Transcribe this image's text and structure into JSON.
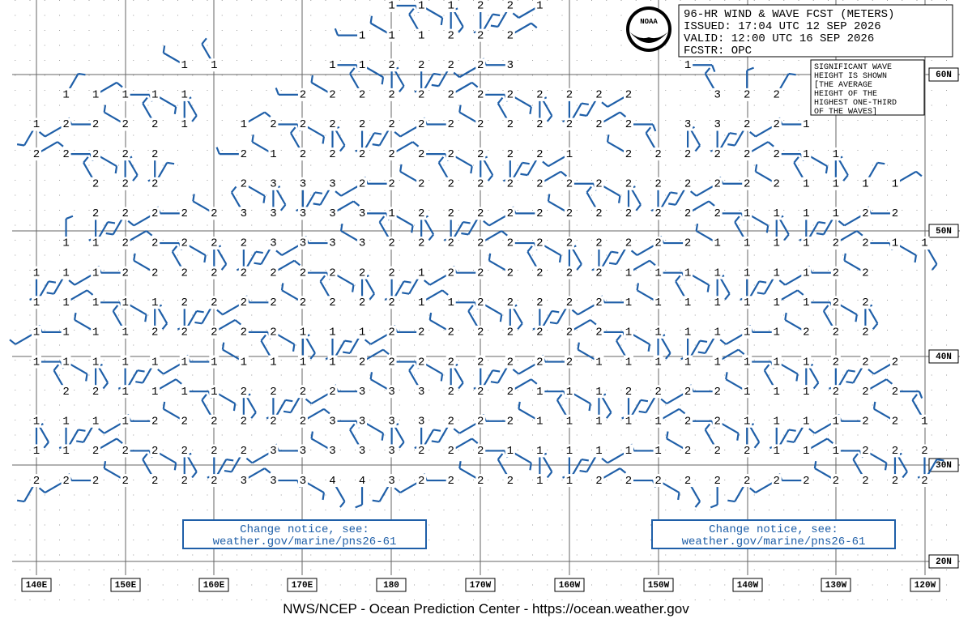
{
  "header": {
    "lines": [
      "96-HR WIND & WAVE FCST (METERS)",
      "ISSUED: 17:04 UTC 12 SEP 2026",
      "VALID:  12:00 UTC 16 SEP 2026",
      "FCSTR:  OPC"
    ],
    "logo_text": "NOAA"
  },
  "note": {
    "lines": [
      "SIGNIFICANT WAVE",
      "HEIGHT IS SHOWN",
      "[THE AVERAGE",
      "HEIGHT OF THE",
      "HIGHEST ONE-THIRD",
      "OF THE WAVES]"
    ]
  },
  "notices": [
    {
      "lines": [
        "Change notice, see:",
        "weather.gov/marine/pns26-61"
      ]
    },
    {
      "lines": [
        "Change notice, see:",
        "weather.gov/marine/pns26-61"
      ]
    }
  ],
  "longitude_labels": [
    "140E",
    "150E",
    "160E",
    "170E",
    "180",
    "170W",
    "160W",
    "150W",
    "140W",
    "130W",
    "120W"
  ],
  "latitude_labels": [
    "60N",
    "50N",
    "40N",
    "30N",
    "20N"
  ],
  "wave_grid": {
    "rows": [
      [
        null,
        null,
        null,
        null,
        null,
        null,
        null,
        null,
        null,
        null,
        null,
        null,
        1,
        1,
        1,
        2,
        2,
        1,
        null,
        null,
        null,
        null,
        null,
        null,
        null,
        null,
        null,
        null,
        null,
        null,
        null
      ],
      [
        null,
        null,
        null,
        null,
        null,
        null,
        null,
        null,
        null,
        null,
        null,
        1,
        1,
        1,
        2,
        2,
        2,
        null,
        null,
        null,
        null,
        null,
        null,
        null,
        null,
        null,
        null,
        null,
        null,
        null,
        null
      ],
      [
        null,
        null,
        null,
        null,
        null,
        1,
        1,
        null,
        null,
        null,
        1,
        1,
        2,
        2,
        2,
        2,
        3,
        null,
        null,
        null,
        null,
        null,
        1,
        null,
        null,
        null,
        null,
        null,
        null,
        null,
        null
      ],
      [
        null,
        1,
        1,
        1,
        1,
        1,
        null,
        null,
        null,
        2,
        2,
        2,
        2,
        2,
        2,
        2,
        2,
        2,
        2,
        2,
        2,
        null,
        null,
        3,
        2,
        2,
        null,
        null,
        null,
        null,
        null
      ],
      [
        1,
        2,
        2,
        2,
        2,
        1,
        null,
        1,
        2,
        2,
        2,
        2,
        2,
        2,
        2,
        2,
        2,
        2,
        2,
        2,
        2,
        null,
        3,
        3,
        2,
        2,
        1,
        null,
        null,
        null,
        null
      ],
      [
        2,
        2,
        2,
        2,
        2,
        null,
        null,
        2,
        1,
        2,
        2,
        2,
        2,
        2,
        2,
        2,
        2,
        2,
        1,
        null,
        2,
        2,
        2,
        2,
        2,
        2,
        1,
        1,
        null,
        null,
        null
      ],
      [
        null,
        null,
        2,
        2,
        2,
        null,
        null,
        2,
        3,
        3,
        3,
        2,
        2,
        2,
        2,
        2,
        2,
        2,
        2,
        2,
        2,
        2,
        2,
        2,
        2,
        2,
        1,
        1,
        1,
        1,
        null
      ],
      [
        null,
        null,
        2,
        2,
        2,
        2,
        2,
        3,
        3,
        3,
        3,
        3,
        1,
        2,
        2,
        2,
        2,
        2,
        2,
        2,
        2,
        2,
        2,
        2,
        1,
        1,
        1,
        1,
        2,
        2,
        null
      ],
      [
        null,
        1,
        1,
        2,
        2,
        2,
        2,
        2,
        3,
        3,
        3,
        3,
        2,
        2,
        2,
        2,
        2,
        2,
        2,
        2,
        2,
        2,
        2,
        1,
        1,
        1,
        1,
        2,
        2,
        1,
        1
      ],
      [
        1,
        1,
        1,
        2,
        2,
        2,
        2,
        2,
        2,
        2,
        2,
        2,
        2,
        1,
        2,
        2,
        2,
        2,
        2,
        2,
        1,
        1,
        1,
        1,
        1,
        1,
        1,
        2,
        2,
        null,
        null
      ],
      [
        1,
        1,
        1,
        1,
        1,
        2,
        2,
        2,
        2,
        2,
        2,
        2,
        2,
        1,
        1,
        2,
        2,
        2,
        2,
        2,
        1,
        1,
        1,
        1,
        1,
        1,
        1,
        2,
        2,
        null,
        null
      ],
      [
        1,
        1,
        1,
        1,
        2,
        2,
        2,
        2,
        2,
        1,
        1,
        1,
        2,
        2,
        2,
        2,
        2,
        2,
        2,
        2,
        1,
        1,
        1,
        1,
        1,
        1,
        2,
        2,
        2,
        null,
        null
      ],
      [
        1,
        1,
        1,
        1,
        1,
        1,
        1,
        1,
        1,
        1,
        1,
        2,
        2,
        2,
        2,
        2,
        2,
        2,
        2,
        1,
        1,
        1,
        1,
        1,
        1,
        1,
        1,
        2,
        2,
        2,
        null
      ],
      [
        null,
        2,
        2,
        1,
        1,
        1,
        1,
        2,
        2,
        2,
        2,
        3,
        3,
        3,
        2,
        2,
        2,
        1,
        1,
        1,
        2,
        2,
        2,
        2,
        1,
        1,
        1,
        2,
        2,
        2,
        null
      ],
      [
        1,
        1,
        1,
        1,
        2,
        2,
        2,
        2,
        2,
        2,
        3,
        3,
        3,
        3,
        2,
        2,
        2,
        1,
        1,
        1,
        1,
        1,
        2,
        2,
        1,
        1,
        1,
        1,
        2,
        2,
        1
      ],
      [
        1,
        1,
        2,
        2,
        2,
        2,
        2,
        2,
        3,
        3,
        3,
        3,
        3,
        2,
        2,
        2,
        1,
        1,
        1,
        1,
        1,
        1,
        2,
        2,
        2,
        1,
        1,
        1,
        2,
        2,
        2
      ],
      [
        2,
        2,
        2,
        2,
        2,
        2,
        2,
        3,
        3,
        3,
        4,
        4,
        3,
        2,
        2,
        2,
        2,
        1,
        1,
        2,
        2,
        2,
        2,
        2,
        2,
        2,
        2,
        2,
        2,
        2,
        2
      ]
    ]
  },
  "footer": "NWS/NCEP - Ocean Prediction Center - https://ocean.weather.gov"
}
